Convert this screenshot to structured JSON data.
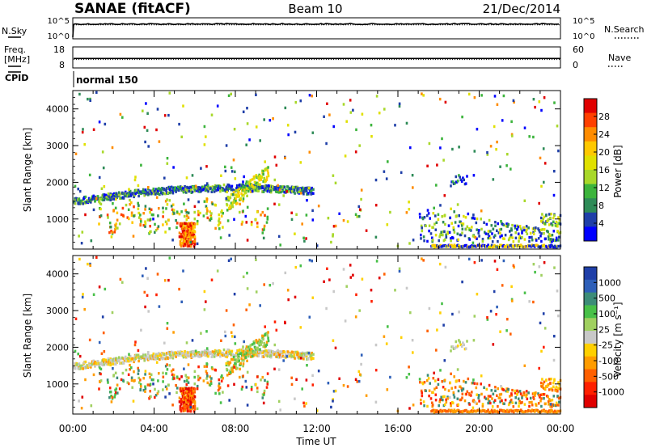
{
  "header": {
    "station": "SANAE (fitACF)",
    "beam": "Beam 10",
    "date": "21/Dec/2014"
  },
  "chart_data": [
    {
      "type": "line",
      "panel": "noise",
      "left_label": "N.Sky",
      "right_label": "N.Search",
      "left_ticks": [
        "10^5",
        "10^0"
      ],
      "right_ticks": [
        "10^5",
        "10^0"
      ],
      "scale": "log",
      "ylim": [
        1,
        100000
      ],
      "series": [
        {
          "name": "N.Sky",
          "style": "solid",
          "level": 5000
        },
        {
          "name": "N.Search",
          "style": "dotted",
          "level": 5000
        }
      ]
    },
    {
      "type": "line",
      "panel": "frequency",
      "left_label_lines": [
        "Freq.",
        "[MHz]"
      ],
      "right_label": "Nave",
      "left_ticks": [
        "18",
        "8"
      ],
      "right_ticks": [
        "60",
        "0"
      ],
      "ylim_left": [
        8,
        18
      ],
      "ylim_right": [
        0,
        60
      ],
      "series": [
        {
          "name": "Freq.",
          "style": "solid",
          "value": 12.4
        },
        {
          "name": "Nave",
          "style": "dotted",
          "value": 23
        }
      ]
    },
    {
      "type": "text",
      "panel": "cpid",
      "label": "CPID",
      "value": "normal 150"
    },
    {
      "type": "heatmap",
      "panel": "power",
      "ylabel": "Slant Range [km]",
      "ylim": [
        180,
        4500
      ],
      "y_ticks": [
        1000,
        2000,
        3000,
        4000
      ],
      "xlim": [
        0,
        24
      ],
      "colorbar": {
        "label": "Power [dB]",
        "ticks": [
          "28",
          "24",
          "20",
          "16",
          "12",
          "8",
          "4"
        ],
        "colors": [
          "#e00000",
          "#ff4000",
          "#ff8c00",
          "#ffc800",
          "#e0e000",
          "#a8d82a",
          "#3cb43c",
          "#2e8b57",
          "#1f3fa8",
          "#0000ff"
        ]
      }
    },
    {
      "type": "heatmap",
      "panel": "velocity",
      "ylabel": "Slant Range [km]",
      "ylim": [
        180,
        4500
      ],
      "y_ticks": [
        1000,
        2000,
        3000,
        4000
      ],
      "xlim": [
        0,
        24
      ],
      "xlabel": "Time UT",
      "x_ticks": [
        "00:00",
        "04:00",
        "08:00",
        "12:00",
        "16:00",
        "20:00",
        "00:00"
      ],
      "colorbar": {
        "label": "Velocity [m s⁻¹]",
        "ticks": [
          "1000",
          "500",
          "100",
          "25",
          "-25",
          "-100",
          "-500",
          "-1000"
        ],
        "colors": [
          "#1f3fa8",
          "#2e5fb8",
          "#3c8c78",
          "#48c048",
          "#a0d060",
          "#c8c8c8",
          "#ffd000",
          "#ff9c00",
          "#ff6000",
          "#ff2000",
          "#e00000"
        ]
      }
    }
  ]
}
